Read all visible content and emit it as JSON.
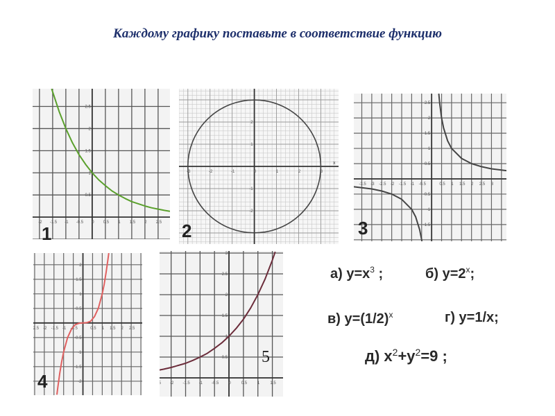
{
  "title": "Каждому графику поставьте в соответствие функцию",
  "options": [
    {
      "pre": "а) y=x",
      "sup": "3",
      "post": " ;"
    },
    {
      "pre": "б) y=2",
      "sup": "x",
      "post": ";"
    },
    {
      "pre": "в) y=(1/2)",
      "sup": "x",
      "post": ""
    },
    {
      "pre": "г) y=1/x;",
      "sup": "",
      "post": ""
    },
    {
      "pre": "д) x",
      "sup": "2",
      "mid": "+y",
      "sup2": "2",
      "post": "=9 ;"
    }
  ],
  "chart_data": [
    {
      "id": "1",
      "label": "1",
      "type": "line",
      "color": "#5aa02c",
      "grid": true,
      "grid_step": [
        0.5,
        0.5
      ],
      "xlim": [
        -2.26,
        2.95
      ],
      "ylim": [
        -0.5,
        2.9
      ],
      "xticks": [
        "-2",
        "-1.5",
        "-1",
        "-0.5",
        "0",
        "0.5",
        "1",
        "1.5",
        "2",
        "2.5"
      ],
      "xtick_values": [
        -2,
        -1.5,
        -1,
        -0.5,
        0,
        0.5,
        1,
        1.5,
        2,
        2.5
      ],
      "yticks": [
        "0.5",
        "1",
        "1.5",
        "2",
        "2.5"
      ],
      "ytick_values": [
        0.5,
        1,
        1.5,
        2,
        2.5
      ],
      "x": [
        -1.54,
        -1.5,
        -1.25,
        -1,
        -0.75,
        -0.5,
        -0.25,
        0,
        0.25,
        0.5,
        0.75,
        1,
        1.25,
        1.5,
        1.75,
        2,
        2.25,
        2.5,
        2.75,
        2.95
      ],
      "y": [
        2.9,
        2.83,
        2.38,
        2,
        1.68,
        1.41,
        1.19,
        1,
        0.84,
        0.71,
        0.59,
        0.5,
        0.42,
        0.35,
        0.3,
        0.25,
        0.21,
        0.18,
        0.15,
        0.13
      ]
    },
    {
      "id": "2",
      "label": "2",
      "type": "circle",
      "color": "#444444",
      "grid": true,
      "grid_step": [
        0.2,
        0.2
      ],
      "xlim": [
        -3.4,
        3.8
      ],
      "ylim": [
        -3.5,
        3.5
      ],
      "center": [
        0,
        0
      ],
      "radius": 3,
      "xlabel": "x",
      "xticks": [
        "-3",
        "-2",
        "-1",
        "0",
        "1",
        "2",
        "3"
      ],
      "xtick_values": [
        -3,
        -2,
        -1,
        0,
        1,
        2,
        3
      ],
      "yticks": [
        "2",
        "1",
        "-1",
        "-2"
      ],
      "ytick_values": [
        2,
        1,
        -1,
        -2
      ]
    },
    {
      "id": "3",
      "label": "3",
      "type": "line",
      "color": "#444444",
      "grid": true,
      "grid_step": [
        0.5,
        0.5
      ],
      "xlim": [
        -3.9,
        3.75
      ],
      "ylim": [
        -2.05,
        2.8
      ],
      "xticks": [
        "-3.5",
        "-3",
        "-2.5",
        "-2",
        "-1.5",
        "-1",
        "-0.5",
        "0.5",
        "1",
        "1.5",
        "2",
        "2.5",
        "3"
      ],
      "xtick_values": [
        -3.5,
        -3,
        -2.5,
        -2,
        -1.5,
        -1,
        -0.5,
        0.5,
        1,
        1.5,
        2,
        2.5,
        3
      ],
      "yticks": [
        "2.5",
        "2",
        "1.5",
        "1",
        "0.5",
        "-0.5",
        "-1",
        "-1.5"
      ],
      "ytick_values": [
        2.5,
        2,
        1.5,
        1,
        0.5,
        -0.5,
        -1,
        -1.5
      ],
      "series": [
        {
          "x": [
            0.36,
            0.4,
            0.5,
            0.6,
            0.8,
            1,
            1.5,
            2,
            2.5,
            3,
            3.5,
            3.75
          ],
          "y": [
            2.8,
            2.5,
            2,
            1.67,
            1.25,
            1,
            0.67,
            0.5,
            0.4,
            0.33,
            0.29,
            0.27
          ]
        },
        {
          "x": [
            -3.9,
            -3.5,
            -3,
            -2.5,
            -2,
            -1.5,
            -1,
            -0.8,
            -0.6,
            -0.5,
            -0.49
          ],
          "y": [
            -0.26,
            -0.29,
            -0.33,
            -0.4,
            -0.5,
            -0.67,
            -1,
            -1.25,
            -1.67,
            -2,
            -2.05
          ]
        }
      ]
    },
    {
      "id": "4",
      "label": "4",
      "type": "line",
      "color": "#e06060",
      "grid": true,
      "grid_step": [
        0.5,
        0.5
      ],
      "xlim": [
        -2.57,
        3.07
      ],
      "ylim": [
        -2.48,
        2.4
      ],
      "xticks": [
        "-2.5",
        "-2",
        "-1.5",
        "-1",
        "-0.5",
        "0.5",
        "1",
        "1.5",
        "2",
        "2.5"
      ],
      "xtick_values": [
        -2.5,
        -2,
        -1.5,
        -1,
        -0.5,
        0.5,
        1,
        1.5,
        2,
        2.5
      ],
      "yticks": [
        "2",
        "1.5",
        "1",
        "0.5",
        "-0.5",
        "-1",
        "-1.5",
        "-2"
      ],
      "ytick_values": [
        2,
        1.5,
        1,
        0.5,
        -0.5,
        -1,
        -1.5,
        -2
      ],
      "x": [
        -1.35,
        -1.3,
        -1.2,
        -1.1,
        -1,
        -0.8,
        -0.6,
        -0.4,
        -0.2,
        0,
        0.2,
        0.4,
        0.6,
        0.8,
        1,
        1.1,
        1.2,
        1.3,
        1.34
      ],
      "y": [
        -2.46,
        -2.2,
        -1.73,
        -1.33,
        -1,
        -0.51,
        -0.22,
        -0.06,
        -0.01,
        0,
        0.01,
        0.06,
        0.22,
        0.51,
        1,
        1.33,
        1.73,
        2.2,
        2.4
      ]
    },
    {
      "id": "5",
      "label": "5",
      "type": "line",
      "color": "#6b2c3a",
      "grid": true,
      "grid_step": [
        0.5,
        0.5
      ],
      "xlim": [
        -2.4,
        1.87
      ],
      "ylim": [
        -0.45,
        3.05
      ],
      "xticks": [
        "-2.5",
        "-2",
        "-1.5",
        "-1",
        "-0.5",
        "0",
        "0.5",
        "1",
        "1.5"
      ],
      "xtick_values": [
        -2.5,
        -2,
        -1.5,
        -1,
        -0.5,
        0,
        0.5,
        1,
        1.5
      ],
      "yticks": [
        "3",
        "2.5",
        "2",
        "1.5",
        "1",
        "0.5"
      ],
      "ytick_values": [
        3,
        2.5,
        2,
        1.5,
        1,
        0.5
      ],
      "x": [
        -2.4,
        -2.25,
        -2,
        -1.75,
        -1.5,
        -1.25,
        -1,
        -0.75,
        -0.5,
        -0.25,
        0,
        0.25,
        0.5,
        0.75,
        1,
        1.25,
        1.5,
        1.6
      ],
      "y": [
        0.19,
        0.21,
        0.25,
        0.3,
        0.35,
        0.42,
        0.5,
        0.59,
        0.71,
        0.84,
        1,
        1.19,
        1.41,
        1.68,
        2,
        2.38,
        2.83,
        3.03
      ]
    }
  ]
}
